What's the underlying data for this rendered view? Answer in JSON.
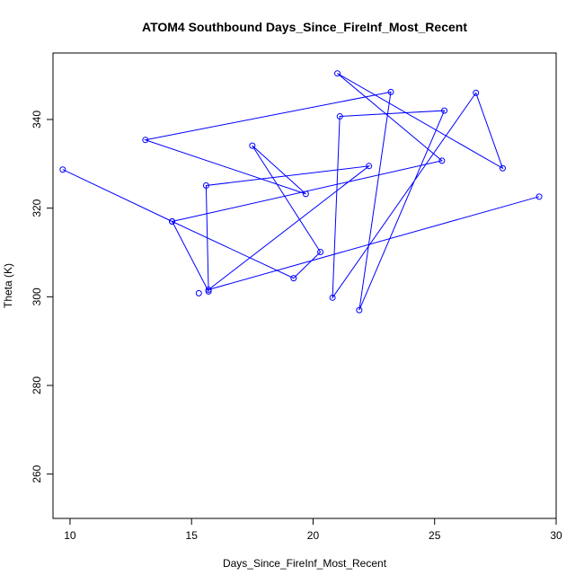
{
  "chart_data": {
    "type": "line",
    "title": "ATOM4 Southbound Days_Since_FireInf_Most_Recent",
    "xlabel": "Days_Since_FireInf_Most_Recent",
    "ylabel": "Theta (K)",
    "xlim": [
      9.3,
      30.0
    ],
    "ylim": [
      250,
      355
    ],
    "xticks": [
      10,
      15,
      20,
      25,
      30
    ],
    "yticks": [
      260,
      280,
      300,
      320,
      340
    ],
    "color": "#0000ff",
    "grid": false,
    "marker": "open-circle",
    "series": [
      {
        "points": [
          [
            9.7,
            328.7
          ],
          [
            14.2,
            317.0
          ],
          [
            19.2,
            304.2
          ],
          [
            20.3,
            310.1
          ],
          [
            17.5,
            334.1
          ],
          [
            19.7,
            323.2
          ],
          [
            13.1,
            335.4
          ],
          [
            23.2,
            346.2
          ],
          [
            21.9,
            297.0
          ],
          [
            25.4,
            342.0
          ],
          [
            21.1,
            340.7
          ],
          [
            20.8,
            299.8
          ],
          [
            26.7,
            346.0
          ],
          [
            27.8,
            329.0
          ],
          [
            21.0,
            350.4
          ],
          [
            25.3,
            330.7
          ],
          [
            14.2,
            317.0
          ],
          [
            15.7,
            301.2
          ],
          [
            15.6,
            325.1
          ],
          [
            22.3,
            329.5
          ],
          [
            15.7,
            301.6
          ],
          [
            29.3,
            322.6
          ]
        ]
      }
    ],
    "extra_points": [
      [
        15.3,
        300.8
      ]
    ]
  }
}
